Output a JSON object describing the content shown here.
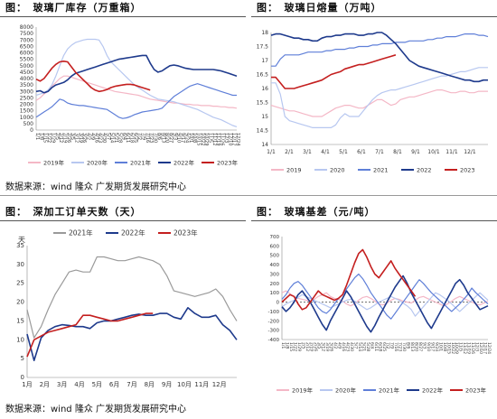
{
  "source_text": "数据来源：wind 隆众 广发期货发展研究中心",
  "colors": {
    "y2019": "#f4b7c6",
    "y2020": "#b7c7f0",
    "y2021": "#5f7fd8",
    "y2022": "#1e3a8c",
    "y2023": "#c41f1f",
    "y2021_gray": "#9a9a9a"
  },
  "chart_data": [
    {
      "id": "c1",
      "type": "line",
      "title": "图：　玻璃厂库存（万重箱）",
      "ylim": [
        0,
        8000
      ],
      "yticks": [
        0,
        500,
        1000,
        1500,
        2000,
        2500,
        3000,
        3500,
        4000,
        4500,
        5000,
        5500,
        6000,
        6500,
        7000,
        7500,
        8000
      ],
      "xlabels": [
        "1/1",
        "1/8",
        "1/15",
        "1/22",
        "1/29",
        "2/5",
        "2/12",
        "2/19",
        "2/26",
        "3/5",
        "3/12",
        "3/19",
        "3/26",
        "4/2",
        "4/9",
        "4/16",
        "4/23",
        "4/30",
        "5/7",
        "5/14",
        "5/21",
        "5/28",
        "6/4",
        "6/11",
        "6/18",
        "6/25",
        "7/2",
        "7/9",
        "7/16",
        "7/23",
        "7/30",
        "8/6",
        "8/13",
        "8/20",
        "8/27",
        "9/3",
        "9/10",
        "9/17",
        "9/24",
        "10/1",
        "10/8",
        "10/15",
        "10/22",
        "10/29",
        "11/5",
        "11/12",
        "11/19",
        "11/26",
        "12/3",
        "12/10",
        "12/17",
        "12/24"
      ],
      "series": [
        {
          "name": "2019年",
          "color": "#f4b7c6",
          "values": [
            2300,
            2500,
            2800,
            3000,
            3400,
            3700,
            4000,
            4200,
            4200,
            4100,
            4000,
            3900,
            3800,
            3700,
            3600,
            3500,
            3400,
            3300,
            3200,
            3100,
            3000,
            2950,
            2900,
            2850,
            2800,
            2750,
            2700,
            2600,
            2500,
            2400,
            2350,
            2300,
            2250,
            2200,
            2150,
            2100,
            2100,
            2050,
            2000,
            2000,
            1950,
            1950,
            1900,
            1900,
            1900,
            1850,
            1850,
            1800,
            1800,
            1750,
            1750,
            1700
          ]
        },
        {
          "name": "2020年",
          "color": "#b7c7f0",
          "values": [
            2700,
            2800,
            2900,
            3100,
            3500,
            4200,
            5000,
            5800,
            6300,
            6600,
            6800,
            6900,
            7000,
            7050,
            7050,
            7050,
            7000,
            6500,
            5800,
            5300,
            5000,
            4700,
            4400,
            4100,
            3800,
            3500,
            3300,
            3100,
            2900,
            2700,
            2550,
            2400,
            2350,
            2300,
            2250,
            2200,
            2100,
            2000,
            1900,
            1800,
            1700,
            1600,
            1450,
            1300,
            1150,
            1000,
            900,
            800,
            650,
            500,
            350,
            250
          ]
        },
        {
          "name": "2021年",
          "color": "#5f7fd8",
          "values": [
            1000,
            1200,
            1400,
            1600,
            1800,
            2100,
            2400,
            2300,
            2100,
            2000,
            1950,
            1900,
            1900,
            1850,
            1800,
            1750,
            1700,
            1650,
            1600,
            1400,
            1200,
            1000,
            900,
            950,
            1050,
            1200,
            1300,
            1400,
            1450,
            1500,
            1550,
            1600,
            1700,
            2000,
            2300,
            2600,
            2800,
            3000,
            3200,
            3400,
            3500,
            3600,
            3500,
            3400,
            3300,
            3200,
            3100,
            3000,
            2900,
            2800,
            2700,
            2700
          ]
        },
        {
          "name": "2022年",
          "color": "#1e3a8c",
          "values": [
            3000,
            3050,
            2900,
            3000,
            3300,
            3500,
            3600,
            3700,
            3900,
            4200,
            4400,
            4500,
            4600,
            4700,
            4800,
            4900,
            5000,
            5100,
            5200,
            5300,
            5400,
            5500,
            5550,
            5600,
            5650,
            5700,
            5750,
            5800,
            5800,
            5200,
            4700,
            4500,
            4600,
            4800,
            5000,
            5050,
            5000,
            4900,
            4800,
            4750,
            4700,
            4700,
            4700,
            4700,
            4700,
            4700,
            4650,
            4600,
            4500,
            4400,
            4300,
            4200
          ]
        },
        {
          "name": "2023年",
          "color": "#c41f1f",
          "values": [
            3950,
            3800,
            4000,
            4400,
            4800,
            5100,
            5300,
            5350,
            5300,
            4900,
            4500,
            4200,
            3900,
            3600,
            3300,
            3100,
            3000,
            3050,
            3150,
            3300,
            3400,
            3450,
            3500,
            3550,
            3550,
            3500,
            3400,
            3300,
            3200,
            3100
          ]
        }
      ]
    },
    {
      "id": "c2",
      "type": "line",
      "title": "图：　玻璃日熔量（万吨）",
      "ylim": [
        14,
        18
      ],
      "yticks": [
        14,
        14.5,
        15,
        15.5,
        16,
        16.5,
        17,
        17.5,
        18
      ],
      "xlabels": [
        "1/1",
        "2/1",
        "3/1",
        "4/1",
        "5/1",
        "6/1",
        "7/1",
        "8/1",
        "9/1",
        "10/1",
        "11/1",
        "12/1"
      ],
      "series": [
        {
          "name": "2019",
          "color": "#f4b7c6",
          "values": [
            15.4,
            15.35,
            15.3,
            15.25,
            15.2,
            15.2,
            15.15,
            15.1,
            15.05,
            15.0,
            15.0,
            15.0,
            15.1,
            15.2,
            15.3,
            15.35,
            15.4,
            15.4,
            15.35,
            15.3,
            15.3,
            15.4,
            15.5,
            15.6,
            15.6,
            15.5,
            15.4,
            15.45,
            15.6,
            15.65,
            15.7,
            15.7,
            15.75,
            15.8,
            15.85,
            15.9,
            15.95,
            15.95,
            15.9,
            15.85,
            15.85,
            15.9,
            15.9,
            15.85,
            15.85,
            15.9,
            15.9,
            15.9
          ]
        },
        {
          "name": "2020",
          "color": "#b7c7f0",
          "values": [
            16.2,
            16.2,
            15.8,
            15.0,
            14.85,
            14.8,
            14.75,
            14.7,
            14.65,
            14.6,
            14.6,
            14.6,
            14.6,
            14.6,
            14.7,
            14.95,
            15.1,
            15.0,
            15.0,
            15.0,
            15.2,
            15.4,
            15.6,
            15.75,
            15.85,
            15.9,
            15.95,
            15.95,
            16.0,
            16.05,
            16.1,
            16.15,
            16.2,
            16.25,
            16.3,
            16.35,
            16.4,
            16.45,
            16.45,
            16.5,
            16.55,
            16.6,
            16.6,
            16.65,
            16.7,
            16.75,
            16.75,
            16.75
          ]
        },
        {
          "name": "2021",
          "color": "#5f7fd8",
          "values": [
            16.8,
            16.8,
            17.05,
            17.2,
            17.2,
            17.2,
            17.2,
            17.25,
            17.3,
            17.3,
            17.3,
            17.3,
            17.35,
            17.35,
            17.4,
            17.4,
            17.4,
            17.45,
            17.45,
            17.5,
            17.5,
            17.5,
            17.55,
            17.55,
            17.6,
            17.6,
            17.6,
            17.65,
            17.65,
            17.65,
            17.7,
            17.7,
            17.7,
            17.7,
            17.75,
            17.75,
            17.8,
            17.8,
            17.85,
            17.85,
            17.85,
            17.9,
            17.95,
            17.95,
            17.95,
            17.9,
            17.9,
            17.85
          ]
        },
        {
          "name": "2022",
          "color": "#1e3a8c",
          "values": [
            17.9,
            17.95,
            17.95,
            17.9,
            17.85,
            17.8,
            17.8,
            17.75,
            17.75,
            17.7,
            17.7,
            17.8,
            17.85,
            17.85,
            17.9,
            17.9,
            17.95,
            17.95,
            17.95,
            17.9,
            17.9,
            17.95,
            17.95,
            18.0,
            18.0,
            17.9,
            17.75,
            17.6,
            17.4,
            17.2,
            17.0,
            16.9,
            16.8,
            16.75,
            16.7,
            16.65,
            16.6,
            16.55,
            16.5,
            16.45,
            16.4,
            16.35,
            16.3,
            16.3,
            16.25,
            16.25,
            16.3,
            16.3
          ]
        },
        {
          "name": "2023",
          "color": "#c41f1f",
          "values": [
            16.4,
            16.4,
            16.2,
            16.0,
            16.0,
            16.0,
            16.05,
            16.1,
            16.15,
            16.2,
            16.25,
            16.3,
            16.4,
            16.5,
            16.55,
            16.6,
            16.7,
            16.75,
            16.8,
            16.85,
            16.85,
            16.9,
            16.95,
            17.0,
            17.05,
            17.1,
            17.15,
            17.2
          ]
        }
      ]
    },
    {
      "id": "c3",
      "type": "line",
      "title": "图：　深加工订单天数（天）",
      "ylim": [
        0,
        35
      ],
      "yticks": [
        0,
        5,
        10,
        15,
        20,
        25,
        30,
        35
      ],
      "yunit": "天",
      "xlabels": [
        "1月",
        "2月",
        "3月",
        "4月",
        "5月",
        "6月",
        "7月",
        "8月",
        "9月",
        "10月",
        "11月",
        "12月"
      ],
      "series": [
        {
          "name": "2021年",
          "color": "#9a9a9a",
          "values": [
            18.0,
            10.5,
            13.5,
            18.0,
            22.0,
            25.0,
            28.0,
            28.5,
            28.0,
            28.0,
            32.0,
            32.0,
            31.5,
            31.0,
            31.0,
            31.5,
            32.0,
            31.5,
            31.0,
            30.0,
            27.0,
            23.0,
            22.5,
            22.0,
            21.5,
            22.0,
            22.5,
            23.5,
            21.5,
            18.0,
            15.0
          ]
        },
        {
          "name": "2022年",
          "color": "#1e3a8c",
          "values": [
            11.5,
            4.5,
            10.5,
            12.5,
            13.5,
            14.0,
            13.8,
            13.5,
            13.5,
            13.0,
            14.5,
            15.0,
            15.0,
            15.5,
            16.0,
            16.5,
            16.8,
            16.5,
            16.5,
            17.0,
            17.0,
            16.0,
            15.5,
            18.5,
            17.0,
            16.0,
            16.0,
            16.5,
            14.0,
            12.5,
            10.0
          ]
        },
        {
          "name": "2023年",
          "color": "#c41f1f",
          "values": [
            5.5,
            10.0,
            11.0,
            12.0,
            12.5,
            13.0,
            13.5,
            14.0,
            16.5,
            16.5,
            16.0,
            15.5,
            15.0,
            15.0,
            15.5,
            16.0,
            16.5,
            17.0,
            17.0
          ]
        }
      ]
    },
    {
      "id": "c4",
      "type": "line",
      "title": "图：　玻璃基差（元/吨）",
      "ylim": [
        -400,
        700
      ],
      "yticks": [
        -400,
        -300,
        -200,
        -100,
        0,
        100,
        200,
        300,
        400,
        500,
        600,
        700
      ],
      "xlabels": [
        "1/1",
        "1/8",
        "1/15",
        "1/22",
        "1/29",
        "2/5",
        "2/12",
        "2/19",
        "2/26",
        "3/5",
        "3/12",
        "3/19",
        "3/26",
        "4/2",
        "4/9",
        "4/16",
        "4/23",
        "4/30",
        "5/7",
        "5/14",
        "5/21",
        "5/28",
        "6/4",
        "6/11",
        "6/18",
        "6/25",
        "7/2",
        "7/9",
        "7/16",
        "7/23",
        "7/30",
        "8/6",
        "8/13",
        "8/20",
        "8/27",
        "9/3",
        "9/10",
        "9/17",
        "9/24",
        "10/1",
        "10/8",
        "10/15",
        "10/22",
        "10/29",
        "11/5",
        "11/12",
        "11/19",
        "11/26",
        "12/3",
        "12/10",
        "12/17",
        "12/24"
      ],
      "series": [
        {
          "name": "2019年",
          "color": "#f4b7c6",
          "values": [
            100,
            120,
            90,
            60,
            40,
            30,
            20,
            10,
            30,
            60,
            80,
            100,
            60,
            40,
            30,
            10,
            -20,
            -40,
            -20,
            20,
            50,
            60,
            40,
            10,
            -20,
            -30,
            -10,
            20,
            40,
            30,
            10,
            0,
            -10,
            20,
            50,
            60,
            40,
            20,
            0,
            -20,
            -40,
            -20,
            10,
            40,
            60,
            40,
            20,
            0,
            -20,
            -30,
            -10,
            10
          ]
        },
        {
          "name": "2020年",
          "color": "#b7c7f0",
          "values": [
            -50,
            -20,
            0,
            20,
            50,
            80,
            60,
            40,
            20,
            0,
            -20,
            -40,
            -60,
            -40,
            -20,
            0,
            20,
            30,
            10,
            -20,
            -50,
            -80,
            -60,
            -30,
            0,
            20,
            40,
            60,
            40,
            20,
            -10,
            -40,
            -80,
            -150,
            -100,
            -50,
            0,
            50,
            100,
            80,
            50,
            20,
            -20,
            -60,
            -100,
            -60,
            -20,
            20,
            60,
            100,
            60,
            20
          ]
        },
        {
          "name": "2021年",
          "color": "#5f7fd8",
          "values": [
            30,
            80,
            150,
            200,
            220,
            180,
            120,
            60,
            0,
            -60,
            -100,
            -120,
            -80,
            -20,
            40,
            80,
            140,
            200,
            260,
            300,
            250,
            180,
            100,
            40,
            -20,
            -80,
            -140,
            -180,
            -120,
            -60,
            0,
            60,
            120,
            180,
            240,
            200,
            150,
            100,
            60,
            20,
            -20,
            -60,
            -100,
            -60,
            -20,
            30,
            80,
            150,
            100,
            60,
            20,
            -20
          ]
        },
        {
          "name": "2022年",
          "color": "#1e3a8c",
          "values": [
            -50,
            -100,
            -60,
            0,
            80,
            120,
            60,
            0,
            -80,
            -160,
            -240,
            -300,
            -200,
            -120,
            -40,
            40,
            120,
            60,
            -20,
            -100,
            -180,
            -260,
            -320,
            -250,
            -160,
            -80,
            0,
            80,
            160,
            220,
            280,
            200,
            100,
            20,
            -60,
            -140,
            -220,
            -280,
            -200,
            -120,
            -40,
            40,
            120,
            200,
            240,
            180,
            100,
            40,
            -20,
            -80,
            -60,
            -40
          ]
        },
        {
          "name": "2023年",
          "color": "#c41f1f",
          "values": [
            0,
            40,
            80,
            60,
            -20,
            -80,
            -60,
            0,
            60,
            120,
            80,
            60,
            40,
            20,
            40,
            80,
            180,
            300,
            420,
            520,
            560,
            480,
            380,
            300,
            260,
            320,
            380,
            440,
            360,
            300,
            240,
            180,
            120,
            60
          ]
        }
      ]
    }
  ]
}
